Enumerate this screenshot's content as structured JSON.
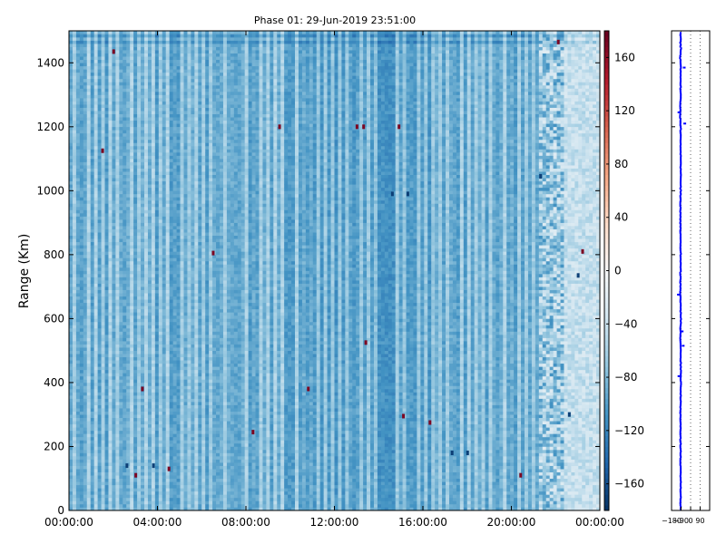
{
  "chart_data": [
    {
      "type": "heatmap",
      "title": "Phase 01: 29-Jun-2019 23:51:00",
      "xlabel": "",
      "ylabel": "Range (Km)",
      "x_tick_labels": [
        "00:00:00",
        "04:00:00",
        "08:00:00",
        "12:00:00",
        "16:00:00",
        "20:00:00",
        "00:00:00"
      ],
      "x_ticks_hours": [
        0,
        4,
        8,
        12,
        16,
        20,
        24
      ],
      "xlim_hours": [
        0,
        24
      ],
      "y_ticks": [
        0,
        200,
        400,
        600,
        800,
        1000,
        1200,
        1400
      ],
      "ylim": [
        0,
        1500
      ],
      "colormap": "RdBu_r",
      "colorbar": {
        "ticks": [
          160,
          120,
          80,
          40,
          0,
          -40,
          -80,
          -120,
          -160
        ],
        "range": [
          -180,
          180
        ]
      },
      "background_value_range": [
        -120,
        -70
      ],
      "high_value_cells": [
        {
          "hour": 2.0,
          "range": 1435
        },
        {
          "hour": 1.5,
          "range": 1125
        },
        {
          "hour": 6.5,
          "range": 805
        },
        {
          "hour": 9.5,
          "range": 1200
        },
        {
          "hour": 13.0,
          "range": 1200
        },
        {
          "hour": 13.3,
          "range": 1200
        },
        {
          "hour": 14.9,
          "range": 1200
        },
        {
          "hour": 23.2,
          "range": 810
        },
        {
          "hour": 22.1,
          "range": 1465
        },
        {
          "hour": 13.4,
          "range": 525
        },
        {
          "hour": 3.3,
          "range": 380
        },
        {
          "hour": 10.8,
          "range": 380
        },
        {
          "hour": 15.1,
          "range": 295
        },
        {
          "hour": 16.3,
          "range": 275
        },
        {
          "hour": 8.3,
          "range": 245
        },
        {
          "hour": 3.0,
          "range": 110
        },
        {
          "hour": 4.5,
          "range": 130
        },
        {
          "hour": 20.4,
          "range": 110
        }
      ],
      "low_value_cells": [
        {
          "hour": 2.6,
          "range": 140
        },
        {
          "hour": 3.8,
          "range": 140
        },
        {
          "hour": 17.3,
          "range": 180
        },
        {
          "hour": 18.0,
          "range": 180
        },
        {
          "hour": 21.3,
          "range": 1045
        },
        {
          "hour": 22.6,
          "range": 300
        },
        {
          "hour": 23.0,
          "range": 735
        },
        {
          "hour": 14.6,
          "range": 990
        },
        {
          "hour": 15.3,
          "range": 990
        }
      ]
    },
    {
      "type": "scatter",
      "x_tick_labels": [
        "−180",
        "−90",
        "0",
        "90"
      ],
      "x_ticks": [
        -180,
        -90,
        0,
        90
      ],
      "xlim": [
        -180,
        180
      ],
      "ylim": [
        0,
        1500
      ],
      "y_ticks": [
        0,
        200,
        400,
        600,
        800,
        1000,
        1200,
        1400
      ],
      "grid": "dotted vertical",
      "color": "#0000ff",
      "mean_x": -95,
      "profile": [
        {
          "y": 1445,
          "x": -92
        },
        {
          "y": 1420,
          "x": -98
        },
        {
          "y": 1380,
          "x": -93
        },
        {
          "y": 1300,
          "x": -95
        },
        {
          "y": 1235,
          "x": -100
        },
        {
          "y": 1200,
          "x": -94
        },
        {
          "y": 1050,
          "x": -93
        },
        {
          "y": 960,
          "x": -95
        },
        {
          "y": 860,
          "x": -96
        },
        {
          "y": 800,
          "x": -94
        },
        {
          "y": 680,
          "x": -97
        },
        {
          "y": 600,
          "x": -93
        },
        {
          "y": 560,
          "x": -96
        },
        {
          "y": 520,
          "x": -95
        },
        {
          "y": 400,
          "x": -92
        },
        {
          "y": 300,
          "x": -96
        },
        {
          "y": 200,
          "x": -95
        },
        {
          "y": 100,
          "x": -94
        },
        {
          "y": 20,
          "x": -95
        }
      ],
      "outliers": [
        {
          "y": 1385,
          "x": -60
        },
        {
          "y": 1245,
          "x": -110
        },
        {
          "y": 1210,
          "x": -55
        },
        {
          "y": 675,
          "x": -115
        },
        {
          "y": 560,
          "x": -80
        },
        {
          "y": 515,
          "x": -70
        },
        {
          "y": 420,
          "x": -110
        }
      ]
    }
  ]
}
